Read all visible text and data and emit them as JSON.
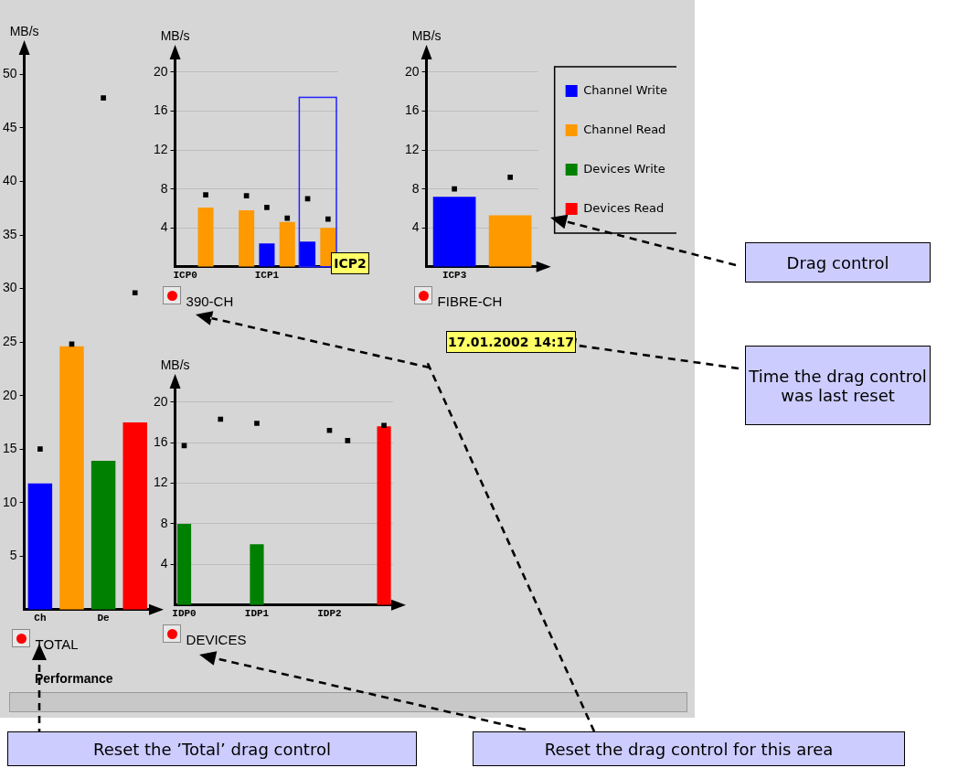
{
  "chart_data": [
    {
      "type": "bar",
      "title": "TOTAL",
      "ylabel": "MB/s",
      "categories": [
        "Ch",
        null,
        "De",
        null
      ],
      "ylim": [
        0,
        52
      ],
      "yticks": [
        5,
        10,
        15,
        20,
        25,
        30,
        35,
        40,
        45,
        50
      ],
      "grid": false,
      "legend": false,
      "series": [
        {
          "colors": [
            "#0000ff",
            "#ff9900",
            "#008000",
            "#ff0000"
          ],
          "values": [
            11.8,
            24.6,
            13.9,
            17.5
          ]
        },
        {
          "type": "scatter",
          "color": "#000000",
          "marker": "square",
          "values": [
            15,
            24.8,
            47.8,
            29.6
          ]
        }
      ],
      "annotations": [
        "Performance",
        "Reset the ’Total’ drag control"
      ]
    },
    {
      "type": "bar",
      "title": "390-CH",
      "ylabel": "MB/s",
      "categories": [
        "ICP0",
        null,
        null,
        null,
        "ICP1",
        null,
        null,
        null
      ],
      "ylim": [
        0,
        21.5
      ],
      "yticks": [
        4,
        8,
        12,
        16,
        20
      ],
      "grid": "y",
      "legend": false,
      "series": [
        {
          "colors": [
            "#0000ff",
            "#ff9900",
            "#0000ff",
            "#ff9900",
            "#0000ff",
            "#ff9900",
            "#0000ff",
            "#ff9900"
          ],
          "values": [
            null,
            6.1,
            null,
            5.8,
            2.4,
            4.6,
            2.6,
            4.0
          ]
        },
        {
          "type": "scatter",
          "color": "#000000",
          "marker": "square",
          "values": [
            null,
            7.4,
            null,
            7.3,
            6.1,
            5.0,
            7.0,
            4.9
          ]
        }
      ],
      "annotations": [
        "ICP2",
        "Reset the drag control for this area"
      ]
    },
    {
      "type": "bar",
      "title": "FIBRE-CH",
      "ylabel": "MB/s",
      "categories": [
        "ICP3",
        null
      ],
      "ylim": [
        0,
        21.5
      ],
      "yticks": [
        4,
        8,
        12,
        16,
        20
      ],
      "grid": "y",
      "legend": "right",
      "stacked": true,
      "series": [
        {
          "name": "Channel Write",
          "color": "#0000ff",
          "values": [
            7.2,
            null
          ]
        },
        {
          "name": "Channel Read",
          "color": "#ff9900",
          "values": [
            null,
            5.3
          ]
        },
        {
          "name": "Devices Write",
          "color": "#008000",
          "values": [
            null,
            null
          ]
        },
        {
          "name": "Devices Read",
          "color": "#ff0000",
          "values": [
            null,
            null
          ]
        },
        {
          "type": "scatter",
          "color": "#000000",
          "marker": "square",
          "values": [
            8.0,
            9.2
          ]
        }
      ],
      "annotations": [
        "17.01.2002 14:17",
        "Drag control",
        "Time the drag control was last reset"
      ]
    },
    {
      "type": "bar",
      "title": "DEVICES",
      "ylabel": "MB/s",
      "categories": [
        "IDP0",
        null,
        null,
        null,
        "IDP1",
        null,
        null,
        null,
        "IDP2",
        null,
        null,
        null
      ],
      "ylim": [
        0,
        21.5
      ],
      "yticks": [
        4,
        8,
        12,
        16,
        20
      ],
      "grid": "y",
      "legend": false,
      "series": [
        {
          "colors": [
            "#008000",
            "#ff0000",
            "#008000",
            "#ff0000",
            "#008000",
            "#ff0000",
            "#008000",
            "#ff0000",
            "#008000",
            "#ff0000",
            "#008000",
            "#ff0000"
          ],
          "values": [
            8.0,
            null,
            null,
            null,
            6.0,
            null,
            null,
            null,
            null,
            null,
            null,
            17.6
          ]
        },
        {
          "type": "scatter",
          "color": "#000000",
          "marker": "square",
          "values": [
            15.7,
            null,
            18.3,
            null,
            17.9,
            null,
            null,
            null,
            17.2,
            16.2,
            null,
            17.7
          ]
        }
      ]
    }
  ]
}
